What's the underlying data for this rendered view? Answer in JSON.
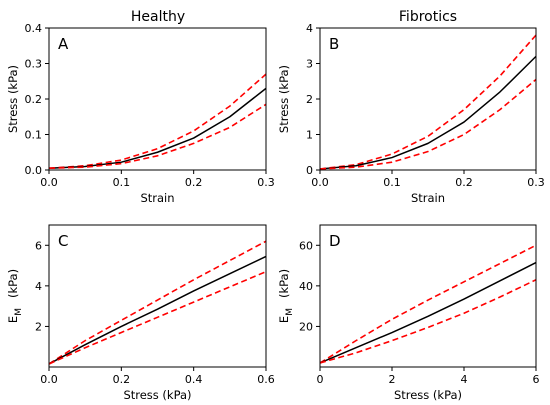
{
  "figure": {
    "column_titles": [
      "Healthy",
      "Fibrotics"
    ]
  },
  "chart_data": [
    {
      "type": "line",
      "panel": "A",
      "title": "Healthy",
      "xlabel": "Strain",
      "ylabel": "Stress (kPa)",
      "xlim": [
        0,
        0.3
      ],
      "ylim": [
        0,
        0.4
      ],
      "xticks": [
        "0.0",
        "0.1",
        "0.2",
        "0.3"
      ],
      "yticks": [
        "0.0",
        "0.1",
        "0.2",
        "0.3",
        "0.4"
      ],
      "grid": false,
      "series": [
        {
          "role": "upper",
          "color": "#ff0000",
          "dashed": true,
          "x": [
            0,
            0.05,
            0.1,
            0.15,
            0.2,
            0.25,
            0.3
          ],
          "y": [
            0.005,
            0.012,
            0.028,
            0.06,
            0.11,
            0.18,
            0.27
          ]
        },
        {
          "role": "mean",
          "color": "#000000",
          "dashed": false,
          "x": [
            0,
            0.05,
            0.1,
            0.15,
            0.2,
            0.25,
            0.3
          ],
          "y": [
            0.005,
            0.01,
            0.022,
            0.05,
            0.09,
            0.15,
            0.23
          ]
        },
        {
          "role": "lower",
          "color": "#ff0000",
          "dashed": true,
          "x": [
            0,
            0.05,
            0.1,
            0.15,
            0.2,
            0.25,
            0.3
          ],
          "y": [
            0.005,
            0.008,
            0.018,
            0.04,
            0.075,
            0.12,
            0.185
          ]
        }
      ]
    },
    {
      "type": "line",
      "panel": "B",
      "title": "Fibrotics",
      "xlabel": "Strain",
      "ylabel": "Stress (kPa)",
      "xlim": [
        0,
        0.3
      ],
      "ylim": [
        0,
        4
      ],
      "xticks": [
        "0.0",
        "0.1",
        "0.2",
        "0.3"
      ],
      "yticks": [
        "0",
        "1",
        "2",
        "3",
        "4"
      ],
      "grid": false,
      "series": [
        {
          "role": "upper",
          "color": "#ff0000",
          "dashed": true,
          "x": [
            0,
            0.05,
            0.1,
            0.15,
            0.2,
            0.25,
            0.3
          ],
          "y": [
            0.03,
            0.15,
            0.45,
            0.95,
            1.7,
            2.65,
            3.8
          ]
        },
        {
          "role": "mean",
          "color": "#000000",
          "dashed": false,
          "x": [
            0,
            0.05,
            0.1,
            0.15,
            0.2,
            0.25,
            0.3
          ],
          "y": [
            0.03,
            0.12,
            0.35,
            0.75,
            1.35,
            2.2,
            3.2
          ]
        },
        {
          "role": "lower",
          "color": "#ff0000",
          "dashed": true,
          "x": [
            0,
            0.05,
            0.1,
            0.15,
            0.2,
            0.25,
            0.3
          ],
          "y": [
            0.03,
            0.08,
            0.22,
            0.52,
            1.0,
            1.7,
            2.55
          ]
        }
      ]
    },
    {
      "type": "line",
      "panel": "C",
      "title": "",
      "xlabel": "Stress (kPa)",
      "ylabel_main": "E",
      "ylabel_sub": "M",
      "ylabel_unit": "(kPa)",
      "xlim": [
        0,
        0.6
      ],
      "ylim": [
        0,
        7
      ],
      "xticks": [
        "0.0",
        "0.2",
        "0.4",
        "0.6"
      ],
      "ytick_values": [
        2,
        4,
        6
      ],
      "yticks": [
        "2",
        "4",
        "6"
      ],
      "grid": false,
      "series": [
        {
          "role": "upper",
          "color": "#ff0000",
          "dashed": true,
          "x": [
            0,
            0.1,
            0.2,
            0.3,
            0.4,
            0.5,
            0.6
          ],
          "y": [
            0.15,
            1.3,
            2.3,
            3.3,
            4.3,
            5.25,
            6.2
          ]
        },
        {
          "role": "mean",
          "color": "#000000",
          "dashed": false,
          "x": [
            0,
            0.1,
            0.2,
            0.3,
            0.4,
            0.5,
            0.6
          ],
          "y": [
            0.15,
            1.1,
            2.0,
            2.85,
            3.75,
            4.6,
            5.45
          ]
        },
        {
          "role": "lower",
          "color": "#ff0000",
          "dashed": true,
          "x": [
            0,
            0.1,
            0.2,
            0.3,
            0.4,
            0.5,
            0.6
          ],
          "y": [
            0.15,
            0.95,
            1.7,
            2.45,
            3.2,
            3.95,
            4.7
          ]
        }
      ]
    },
    {
      "type": "line",
      "panel": "D",
      "title": "",
      "xlabel": "Stress (kPa)",
      "ylabel_main": "E",
      "ylabel_sub": "M",
      "ylabel_unit": "(kPa)",
      "xlim": [
        0,
        6
      ],
      "ylim": [
        0,
        70
      ],
      "xticks": [
        "0",
        "2",
        "4",
        "6"
      ],
      "ytick_values": [
        20,
        40,
        60
      ],
      "yticks": [
        "20",
        "40",
        "60"
      ],
      "grid": false,
      "series": [
        {
          "role": "upper",
          "color": "#ff0000",
          "dashed": true,
          "x": [
            0,
            1,
            2,
            3,
            4,
            5,
            6
          ],
          "y": [
            2,
            13,
            23.5,
            33,
            42,
            51,
            60
          ]
        },
        {
          "role": "mean",
          "color": "#000000",
          "dashed": false,
          "x": [
            0,
            1,
            2,
            3,
            4,
            5,
            6
          ],
          "y": [
            2,
            9.5,
            17,
            25,
            33.5,
            42.5,
            51.5
          ]
        },
        {
          "role": "lower",
          "color": "#ff0000",
          "dashed": true,
          "x": [
            0,
            1,
            2,
            3,
            4,
            5,
            6
          ],
          "y": [
            2,
            7,
            13,
            19.5,
            26.5,
            34.5,
            43
          ]
        }
      ]
    }
  ]
}
